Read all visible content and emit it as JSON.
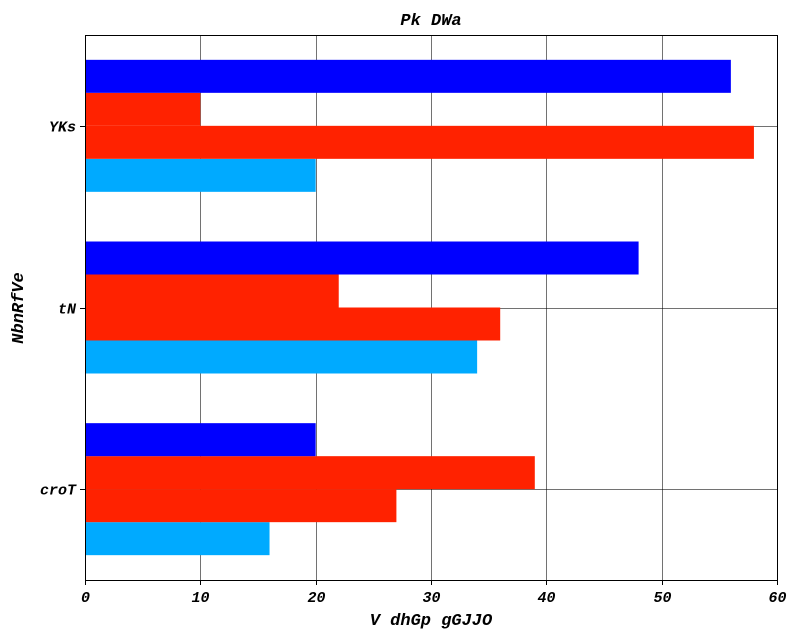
{
  "chart_data": {
    "type": "bar",
    "orientation": "horizontal",
    "title": "Pk DWa",
    "xlabel": "V dhGp gGJJO",
    "ylabel": "NbnRfVe",
    "categories": [
      "croT",
      "tN",
      "YKs"
    ],
    "xlim": [
      0,
      60
    ],
    "xticks": [
      0,
      10,
      20,
      30,
      40,
      50,
      60
    ],
    "grid": true,
    "series": [
      {
        "color": "#00aaff",
        "values": [
          16,
          34,
          20
        ]
      },
      {
        "color": "#ff2200",
        "values": [
          27,
          36,
          58
        ]
      },
      {
        "color": "#ff2200",
        "values": [
          39,
          22,
          10
        ]
      },
      {
        "color": "#0000ff",
        "values": [
          20,
          48,
          56
        ]
      }
    ]
  }
}
